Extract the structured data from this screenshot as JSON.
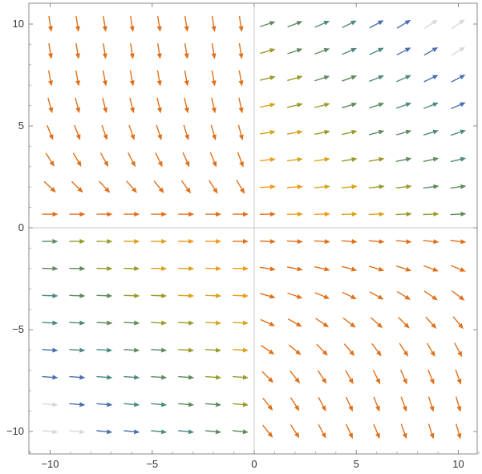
{
  "chart_data": {
    "type": "vector_field",
    "title": "",
    "xlabel": "",
    "ylabel": "",
    "xlim": [
      -11,
      11
    ],
    "ylim": [
      -11,
      10.5
    ],
    "grid": false,
    "frame": true,
    "x_ticks": [
      -10,
      -5,
      0,
      5,
      10
    ],
    "y_ticks": [
      -10,
      -5,
      0,
      5,
      10
    ],
    "x_tick_labels": [
      "−10",
      "−5",
      "0",
      "5",
      "10"
    ],
    "y_tick_labels": [
      "−10",
      "−5",
      "0",
      "5",
      "10"
    ],
    "sample_grid": {
      "x_start": -10,
      "x_end": 10,
      "x_step": 1.3333,
      "y_start": -10,
      "y_end": 10,
      "y_step": 1.3333
    },
    "field": "estimated from arrow directions: upper-left quadrant points downward, right half upper area points rightward/upward, right half lower area points downward-right, lower-left points rightward with larger magnitude toward bottom-left",
    "color_scale": {
      "description": "arrow color indicates vector magnitude",
      "stops": [
        "#e0701a",
        "#f09a1a",
        "#d9a21b",
        "#9a9a2a",
        "#5e8a5e",
        "#4a8a80",
        "#4a6fb0",
        "#d8d8d8"
      ]
    },
    "axes_color": "#999999",
    "frame_color": "#888888"
  }
}
